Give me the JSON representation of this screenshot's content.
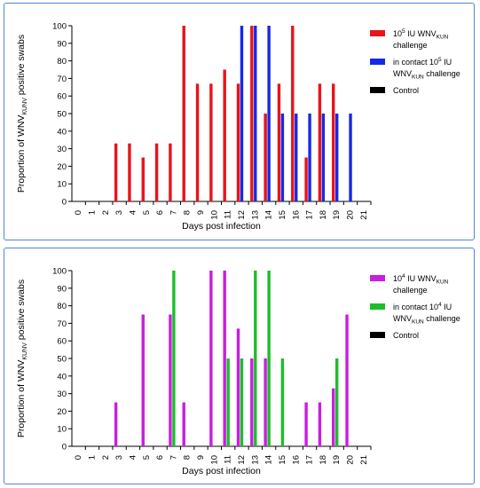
{
  "chart_data": [
    {
      "type": "bar",
      "ylabel_main": "Proportion of WNV",
      "ylabel_sub": "KUNV",
      "ylabel_tail": " positive swabs",
      "xlabel": "Days post infection",
      "ylim": [
        0,
        100
      ],
      "yticks": [
        0,
        10,
        20,
        30,
        40,
        50,
        60,
        70,
        80,
        90,
        100
      ],
      "categories": [
        "0",
        "1",
        "2",
        "3",
        "4",
        "5",
        "6",
        "7",
        "8",
        "9",
        "10",
        "11",
        "12",
        "13",
        "14",
        "15",
        "16",
        "17",
        "18",
        "19",
        "20",
        "21"
      ],
      "legend_placement": "right",
      "grid": false,
      "series": [
        {
          "name": "10^5 IU WNV KUN challenge",
          "legend_lines": [
            {
              "parts": [
                {
                  "t": "10"
                },
                {
                  "t": "5",
                  "sup": true
                },
                {
                  "t": " IU WNV"
                },
                {
                  "t": "KUN",
                  "sub": true
                }
              ]
            },
            {
              "parts": [
                {
                  "t": "challenge"
                }
              ]
            }
          ],
          "color": "#e8131b",
          "values": [
            0,
            0,
            0,
            33,
            33,
            25,
            33,
            33,
            100,
            67,
            67,
            75,
            67,
            100,
            50,
            67,
            100,
            25,
            67,
            67,
            0,
            0
          ]
        },
        {
          "name": "in contact 10^5 IU WNV KUN challenge",
          "legend_lines": [
            {
              "parts": [
                {
                  "t": "in contact 10"
                },
                {
                  "t": "5",
                  "sup": true
                },
                {
                  "t": " IU"
                }
              ]
            },
            {
              "parts": [
                {
                  "t": "WNV"
                },
                {
                  "t": "KUN",
                  "sub": true
                },
                {
                  "t": " challenge"
                }
              ]
            }
          ],
          "color": "#1429e8",
          "values": [
            0,
            0,
            0,
            0,
            0,
            0,
            0,
            0,
            0,
            0,
            0,
            0,
            100,
            100,
            100,
            50,
            50,
            50,
            50,
            50,
            50,
            0
          ]
        },
        {
          "name": "Control",
          "legend_lines": [
            {
              "parts": [
                {
                  "t": "Control"
                }
              ]
            }
          ],
          "color": "#000000",
          "values": [
            0,
            0,
            0,
            0,
            0,
            0,
            0,
            0,
            0,
            0,
            0,
            0,
            0,
            0,
            0,
            0,
            0,
            0,
            0,
            0,
            0,
            0
          ]
        }
      ]
    },
    {
      "type": "bar",
      "ylabel_main": "Proportion of WNV",
      "ylabel_sub": "KUNV",
      "ylabel_tail": " positive swabs",
      "xlabel": "Days post infection",
      "ylim": [
        0,
        100
      ],
      "yticks": [
        0,
        10,
        20,
        30,
        40,
        50,
        60,
        70,
        80,
        90,
        100
      ],
      "categories": [
        "0",
        "1",
        "2",
        "3",
        "4",
        "5",
        "6",
        "7",
        "8",
        "9",
        "10",
        "11",
        "12",
        "13",
        "14",
        "15",
        "16",
        "17",
        "18",
        "19",
        "20",
        "21"
      ],
      "legend_placement": "right",
      "grid": false,
      "series": [
        {
          "name": "10^4 IU WNV KUN challenge",
          "legend_lines": [
            {
              "parts": [
                {
                  "t": "10"
                },
                {
                  "t": "4",
                  "sup": true
                },
                {
                  "t": " IU WNV"
                },
                {
                  "t": "KUN",
                  "sub": true
                }
              ]
            },
            {
              "parts": [
                {
                  "t": "challenge"
                }
              ]
            }
          ],
          "color": "#c81ee0",
          "values": [
            0,
            0,
            0,
            25,
            0,
            75,
            0,
            75,
            25,
            0,
            100,
            100,
            67,
            50,
            50,
            0,
            0,
            25,
            25,
            33,
            75,
            0
          ]
        },
        {
          "name": "in contact 10^4 IU WNV KUN challenge",
          "legend_lines": [
            {
              "parts": [
                {
                  "t": "in contact 10"
                },
                {
                  "t": "4",
                  "sup": true
                },
                {
                  "t": " IU"
                }
              ]
            },
            {
              "parts": [
                {
                  "t": "WNV"
                },
                {
                  "t": "KUN",
                  "sub": true
                },
                {
                  "t": " challenge"
                }
              ]
            }
          ],
          "color": "#1dbd2b",
          "values": [
            0,
            0,
            0,
            0,
            0,
            0,
            0,
            100,
            0,
            0,
            0,
            50,
            50,
            100,
            100,
            50,
            0,
            0,
            0,
            50,
            0,
            0
          ]
        },
        {
          "name": "Control",
          "legend_lines": [
            {
              "parts": [
                {
                  "t": "Control"
                }
              ]
            }
          ],
          "color": "#000000",
          "values": [
            0,
            0,
            0,
            0,
            0,
            0,
            0,
            0,
            0,
            0,
            0,
            0,
            0,
            0,
            0,
            0,
            0,
            0,
            0,
            0,
            0,
            0
          ]
        }
      ]
    }
  ]
}
